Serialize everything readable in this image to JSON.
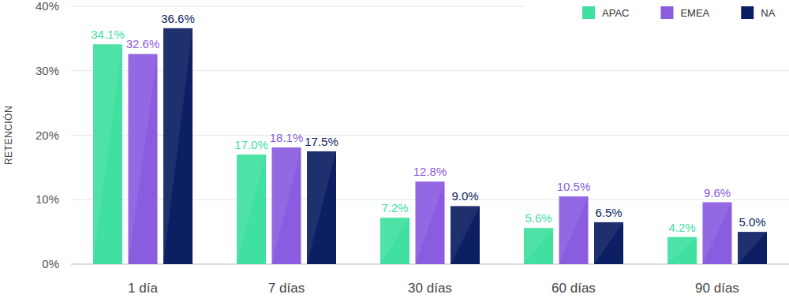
{
  "chart_data": {
    "type": "bar",
    "ylabel": "RETENCIÓN",
    "categories": [
      "1 día",
      "7 días",
      "30 días",
      "60 días",
      "90 días"
    ],
    "series": [
      {
        "name": "APAC",
        "color": "#3fe0a0",
        "values": [
          34.1,
          17.0,
          7.2,
          5.6,
          4.2
        ],
        "value_labels": [
          "34.1%",
          "17.0%",
          "7.2%",
          "5.6%",
          "4.2%"
        ]
      },
      {
        "name": "EMEA",
        "color": "#8a5ce0",
        "values": [
          32.6,
          18.1,
          12.8,
          10.5,
          9.6
        ],
        "value_labels": [
          "32.6%",
          "18.1%",
          "12.8%",
          "10.5%",
          "9.6%"
        ]
      },
      {
        "name": "NA",
        "color": "#0c1f63",
        "values": [
          36.6,
          17.5,
          9.0,
          6.5,
          5.0
        ],
        "value_labels": [
          "36.6%",
          "17.5%",
          "9.0%",
          "6.5%",
          "5.0%"
        ]
      }
    ],
    "ylim": [
      0,
      40
    ],
    "yticks": [
      {
        "value": 0,
        "label": "0%"
      },
      {
        "value": 10,
        "label": "10%"
      },
      {
        "value": 20,
        "label": "20%"
      },
      {
        "value": 30,
        "label": "30%"
      },
      {
        "value": 40,
        "label": "40%"
      }
    ],
    "grid": true,
    "legend": "top-right",
    "data_labels": true
  }
}
